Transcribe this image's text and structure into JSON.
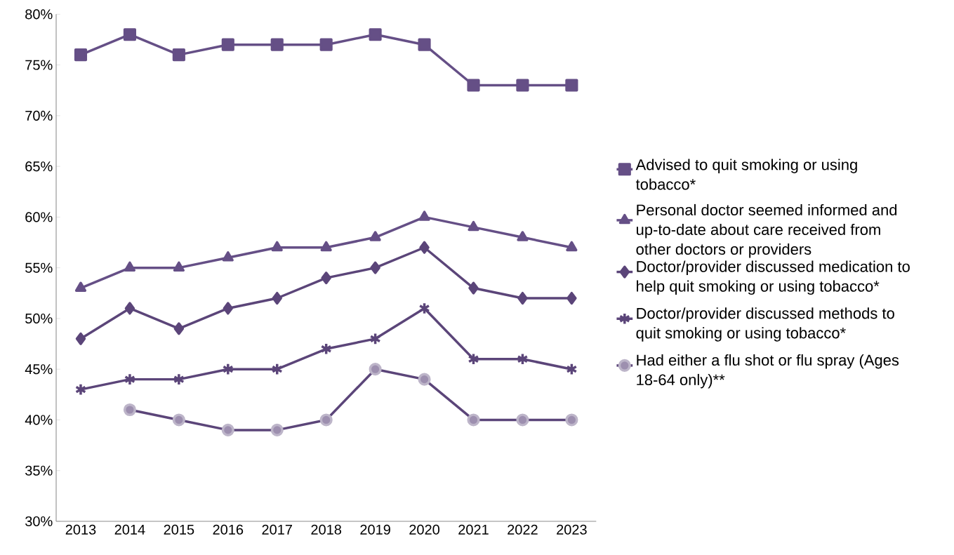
{
  "chart_data": {
    "type": "line",
    "categories": [
      "2013",
      "2014",
      "2015",
      "2016",
      "2017",
      "2018",
      "2019",
      "2020",
      "2021",
      "2022",
      "2023"
    ],
    "series": [
      {
        "name": "Advised to quit smoking or using tobacco*",
        "color": "#654f86",
        "marker": "square",
        "values": [
          76,
          78,
          76,
          77,
          77,
          77,
          78,
          77,
          73,
          73,
          73
        ]
      },
      {
        "name": "Personal doctor seemed informed and up-to-date about care received from other doctors or providers",
        "color": "#654f86",
        "marker": "triangle",
        "values": [
          53,
          55,
          55,
          56,
          57,
          57,
          58,
          60,
          59,
          58,
          57
        ]
      },
      {
        "name": "Doctor/provider discussed medication to help quit smoking or using tobacco*",
        "color": "#5b4579",
        "marker": "diamond",
        "values": [
          48,
          51,
          49,
          51,
          52,
          54,
          55,
          57,
          53,
          52,
          52
        ]
      },
      {
        "name": "Doctor/provider discussed methods to quit smoking or using tobacco*",
        "color": "#5b4579",
        "marker": "cross",
        "values": [
          43,
          44,
          44,
          45,
          45,
          47,
          48,
          51,
          46,
          46,
          45
        ]
      },
      {
        "name": "Had either a flu shot or flu spray (Ages 18-64 only)**",
        "color": "#5b4579",
        "marker": "circle",
        "values": [
          null,
          41,
          40,
          39,
          39,
          40,
          45,
          44,
          40,
          40,
          40
        ]
      }
    ],
    "ylim": [
      30,
      80
    ],
    "yticks": [
      {
        "value": 30,
        "label": "30%"
      },
      {
        "value": 35,
        "label": "35%"
      },
      {
        "value": 40,
        "label": "40%"
      },
      {
        "value": 45,
        "label": "45%"
      },
      {
        "value": 50,
        "label": "50%"
      },
      {
        "value": 55,
        "label": "55%"
      },
      {
        "value": 60,
        "label": "60%"
      },
      {
        "value": 65,
        "label": "65%"
      },
      {
        "value": 70,
        "label": "70%"
      },
      {
        "value": 75,
        "label": "75%"
      },
      {
        "value": 80,
        "label": "80%"
      }
    ],
    "grid": false,
    "legend": "right",
    "line_style": "solid"
  }
}
